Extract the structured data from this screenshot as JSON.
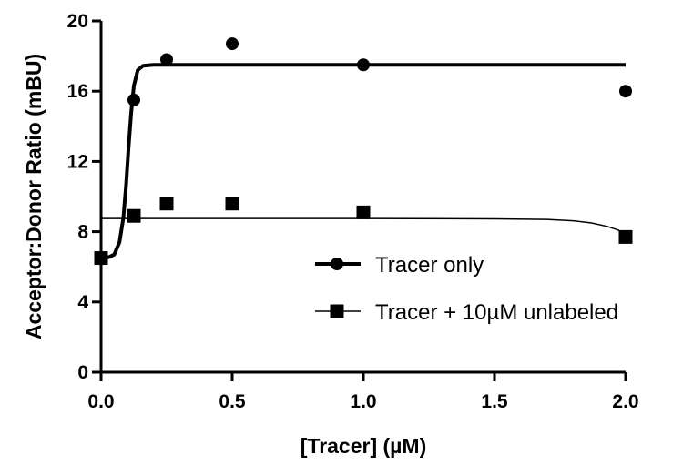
{
  "chart_data": {
    "type": "scatter",
    "xlabel": "[Tracer] (µM)",
    "ylabel": "Acceptor:Donor Ratio (mBU)",
    "xlim": [
      0.0,
      2.0
    ],
    "ylim": [
      0,
      20
    ],
    "x_ticks": [
      "0.0",
      "0.5",
      "1.0",
      "1.5",
      "2.0"
    ],
    "y_ticks": [
      "0",
      "4",
      "8",
      "12",
      "16",
      "20"
    ],
    "x_tick_values": [
      0.0,
      0.5,
      1.0,
      1.5,
      2.0
    ],
    "y_tick_values": [
      0,
      4,
      8,
      12,
      16,
      20
    ],
    "grid": false,
    "legend_position": "right",
    "series": [
      {
        "name": "Tracer only",
        "marker": "circle",
        "fit_line": "thick",
        "color": "#000000",
        "points": [
          {
            "x": 0.0,
            "y": 6.5
          },
          {
            "x": 0.125,
            "y": 15.5
          },
          {
            "x": 0.25,
            "y": 17.8
          },
          {
            "x": 0.5,
            "y": 18.7
          },
          {
            "x": 1.0,
            "y": 17.5
          },
          {
            "x": 2.0,
            "y": 16.0
          }
        ],
        "fit": [
          {
            "x": 0.0,
            "y": 6.5
          },
          {
            "x": 0.03,
            "y": 6.55
          },
          {
            "x": 0.05,
            "y": 6.7
          },
          {
            "x": 0.07,
            "y": 7.4
          },
          {
            "x": 0.085,
            "y": 8.8
          },
          {
            "x": 0.095,
            "y": 10.6
          },
          {
            "x": 0.105,
            "y": 12.8
          },
          {
            "x": 0.115,
            "y": 14.8
          },
          {
            "x": 0.125,
            "y": 16.3
          },
          {
            "x": 0.14,
            "y": 17.2
          },
          {
            "x": 0.16,
            "y": 17.45
          },
          {
            "x": 0.2,
            "y": 17.5
          },
          {
            "x": 0.5,
            "y": 17.5
          },
          {
            "x": 1.0,
            "y": 17.5
          },
          {
            "x": 2.0,
            "y": 17.5
          }
        ]
      },
      {
        "name": "Tracer + 10µM unlabeled",
        "marker": "square",
        "fit_line": "thin",
        "color": "#000000",
        "points": [
          {
            "x": 0.0,
            "y": 6.5
          },
          {
            "x": 0.125,
            "y": 8.9
          },
          {
            "x": 0.25,
            "y": 9.6
          },
          {
            "x": 0.5,
            "y": 9.6
          },
          {
            "x": 1.0,
            "y": 9.1
          },
          {
            "x": 2.0,
            "y": 7.7
          }
        ],
        "fit": [
          {
            "x": 0.0,
            "y": 8.75
          },
          {
            "x": 0.5,
            "y": 8.75
          },
          {
            "x": 1.0,
            "y": 8.75
          },
          {
            "x": 1.5,
            "y": 8.73
          },
          {
            "x": 1.7,
            "y": 8.7
          },
          {
            "x": 1.8,
            "y": 8.62
          },
          {
            "x": 1.87,
            "y": 8.5
          },
          {
            "x": 1.93,
            "y": 8.3
          },
          {
            "x": 1.97,
            "y": 8.1
          },
          {
            "x": 2.0,
            "y": 7.85
          }
        ]
      }
    ]
  }
}
